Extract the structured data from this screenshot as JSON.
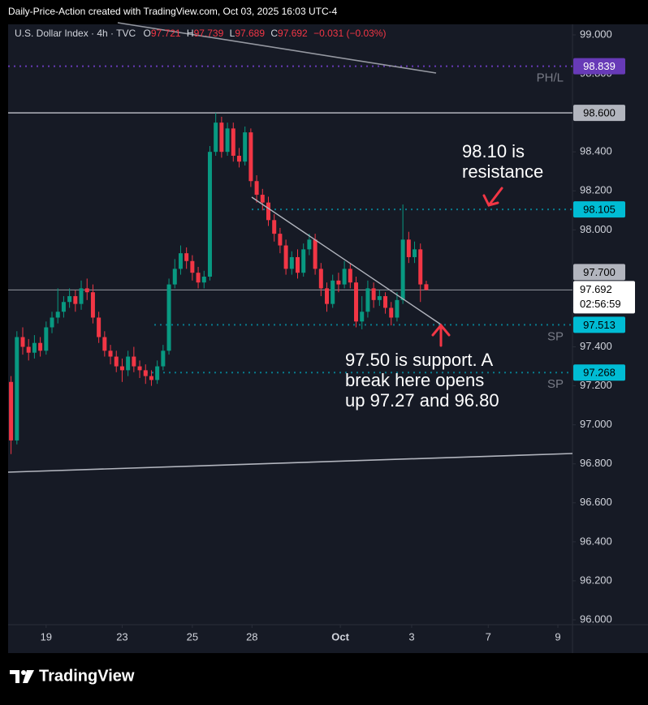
{
  "header": {
    "credit": "Daily-Price-Action created with TradingView.com, Oct 03, 2025 16:03 UTC-4"
  },
  "chart_data": {
    "type": "candlestick",
    "symbol": "U.S. Dollar Index · 4h · TVC",
    "legend": [
      {
        "key": "O",
        "value": "97.721"
      },
      {
        "key": "H",
        "value": "97.739"
      },
      {
        "key": "L",
        "value": "97.689"
      },
      {
        "key": "C",
        "value": "97.692"
      },
      {
        "key": "",
        "value": "−0.031 (−0.03%)"
      }
    ],
    "open": [
      97.22,
      96.92,
      97.45,
      97.4,
      97.37,
      97.42,
      97.38,
      97.5,
      97.55,
      97.58,
      97.63,
      97.66,
      97.62,
      97.7,
      97.68,
      97.55,
      97.45,
      97.38,
      97.35,
      97.3,
      97.28,
      97.35,
      97.3,
      97.28,
      97.25,
      97.23,
      97.3,
      97.38,
      97.72,
      97.8,
      97.88,
      97.84,
      97.78,
      97.73,
      97.76,
      98.4,
      98.55,
      98.4,
      98.52,
      98.38,
      98.35,
      98.5,
      98.25,
      98.18,
      98.14,
      98.05,
      97.98,
      97.92,
      97.8,
      97.86,
      97.78,
      97.9,
      97.95,
      97.8,
      97.7,
      97.62,
      97.74,
      97.72,
      97.8,
      97.73,
      97.53,
      97.58,
      97.7,
      97.64,
      97.66,
      97.6,
      97.55,
      97.64,
      97.95,
      97.86,
      97.9,
      97.721
    ],
    "high": [
      97.25,
      97.48,
      97.5,
      97.44,
      97.46,
      97.45,
      97.53,
      97.58,
      97.7,
      97.66,
      97.7,
      97.69,
      97.74,
      97.75,
      97.72,
      97.58,
      97.48,
      97.41,
      97.38,
      97.34,
      97.38,
      97.4,
      97.33,
      97.31,
      97.28,
      97.33,
      97.41,
      97.75,
      97.85,
      97.92,
      97.91,
      97.87,
      97.81,
      97.79,
      98.43,
      98.6,
      98.58,
      98.55,
      98.55,
      98.42,
      98.53,
      98.52,
      98.28,
      98.21,
      98.17,
      98.08,
      98.01,
      97.95,
      97.89,
      97.9,
      97.93,
      97.98,
      97.98,
      97.83,
      97.73,
      97.77,
      97.78,
      97.84,
      97.83,
      97.76,
      97.66,
      97.74,
      97.73,
      97.69,
      97.68,
      97.63,
      97.68,
      98.13,
      97.99,
      97.94,
      97.93,
      97.739
    ],
    "low": [
      96.85,
      96.9,
      97.36,
      97.33,
      97.34,
      97.35,
      97.36,
      97.47,
      97.52,
      97.55,
      97.6,
      97.58,
      97.59,
      97.64,
      97.52,
      97.42,
      97.35,
      97.31,
      97.27,
      97.22,
      97.25,
      97.27,
      97.24,
      97.21,
      97.2,
      97.21,
      97.28,
      97.36,
      97.7,
      97.77,
      97.8,
      97.74,
      97.7,
      97.7,
      97.74,
      98.38,
      98.37,
      98.38,
      98.35,
      98.32,
      98.33,
      98.22,
      98.14,
      98.1,
      98.02,
      97.94,
      97.88,
      97.77,
      97.77,
      97.75,
      97.76,
      97.87,
      97.77,
      97.66,
      97.58,
      97.6,
      97.68,
      97.7,
      97.7,
      97.5,
      97.49,
      97.55,
      97.6,
      97.61,
      97.57,
      97.51,
      97.53,
      97.62,
      97.83,
      97.83,
      97.63,
      97.689
    ],
    "close": [
      96.92,
      97.45,
      97.4,
      97.37,
      97.42,
      97.38,
      97.5,
      97.55,
      97.58,
      97.63,
      97.66,
      97.62,
      97.7,
      97.68,
      97.55,
      97.45,
      97.38,
      97.35,
      97.3,
      97.28,
      97.35,
      97.3,
      97.28,
      97.25,
      97.23,
      97.3,
      97.38,
      97.72,
      97.8,
      97.88,
      97.84,
      97.78,
      97.73,
      97.76,
      98.4,
      98.55,
      98.4,
      98.52,
      98.38,
      98.35,
      98.5,
      98.25,
      98.18,
      98.14,
      98.05,
      97.98,
      97.92,
      97.8,
      97.86,
      97.78,
      97.9,
      97.95,
      97.8,
      97.7,
      97.62,
      97.74,
      97.72,
      97.8,
      97.73,
      97.53,
      97.58,
      97.7,
      97.64,
      97.66,
      97.6,
      97.55,
      97.64,
      97.95,
      97.86,
      97.9,
      97.72,
      97.692
    ],
    "colors": {
      "up": "#089981",
      "down": "#f23645"
    },
    "xlim": [
      -0.5,
      96
    ],
    "xticks": [
      {
        "value": 6,
        "label": "19"
      },
      {
        "value": 19,
        "label": "23"
      },
      {
        "value": 31,
        "label": "25"
      },
      {
        "value": 41.2,
        "label": "28"
      },
      {
        "value": 56.3,
        "label": "Oct"
      },
      {
        "value": 68.5,
        "label": "3"
      },
      {
        "value": 81.6,
        "label": "7"
      },
      {
        "value": 93.5,
        "label": "9"
      }
    ],
    "ylim": [
      95.975,
      99.054
    ],
    "yticks": [
      {
        "value": 96,
        "label": "96.000"
      },
      {
        "value": 96.2,
        "label": "96.200"
      },
      {
        "value": 96.4,
        "label": "96.400"
      },
      {
        "value": 96.6,
        "label": "96.600"
      },
      {
        "value": 96.8,
        "label": "96.800"
      },
      {
        "value": 97,
        "label": "97.000"
      },
      {
        "value": 97.2,
        "label": "97.200"
      },
      {
        "value": 97.4,
        "label": "97.400"
      },
      {
        "value": 97.6,
        "label": "97.600"
      },
      {
        "value": 97.8,
        "label": "97.800"
      },
      {
        "value": 98,
        "label": "98.000"
      },
      {
        "value": 98.2,
        "label": "98.200"
      },
      {
        "value": 98.4,
        "label": "98.400"
      },
      {
        "value": 98.6,
        "label": "98.600"
      },
      {
        "value": 98.8,
        "label": "98.800"
      },
      {
        "value": 99,
        "label": "99.000"
      }
    ],
    "levels": [
      {
        "value": 98.839,
        "label": "98.839",
        "color": "#673ab7",
        "text_color": "#ffffff",
        "style": "dotted",
        "tag": "PH/L"
      },
      {
        "value": 98.6,
        "label": "98.600",
        "color": "#b2b5be",
        "text_color": "#000000",
        "style": "solid"
      },
      {
        "value": 98.105,
        "label": "98.105",
        "color": "#00bcd4",
        "text_color": "#000000",
        "style": "dotted"
      },
      {
        "value": 97.7,
        "label": "97.700",
        "color": "#b2b5be",
        "text_color": "#000000",
        "style": "none"
      },
      {
        "value": 97.513,
        "label": "97.513",
        "color": "#00bcd4",
        "text_color": "#000000",
        "style": "dotted",
        "tag": "SP"
      },
      {
        "value": 97.268,
        "label": "97.268",
        "color": "#00bcd4",
        "text_color": "#000000",
        "style": "dotted",
        "tag": "SP"
      }
    ],
    "last_price": {
      "value": 97.692,
      "label": "97.692",
      "countdown": "02:56:59"
    },
    "annotations": [
      {
        "lines": [
          "98.10 is",
          "resistance"
        ]
      },
      {
        "lines": [
          "97.50 is support. A",
          "break here opens",
          "up 97.27 and 96.80"
        ]
      }
    ]
  },
  "footer": {
    "brand": "TradingView"
  }
}
